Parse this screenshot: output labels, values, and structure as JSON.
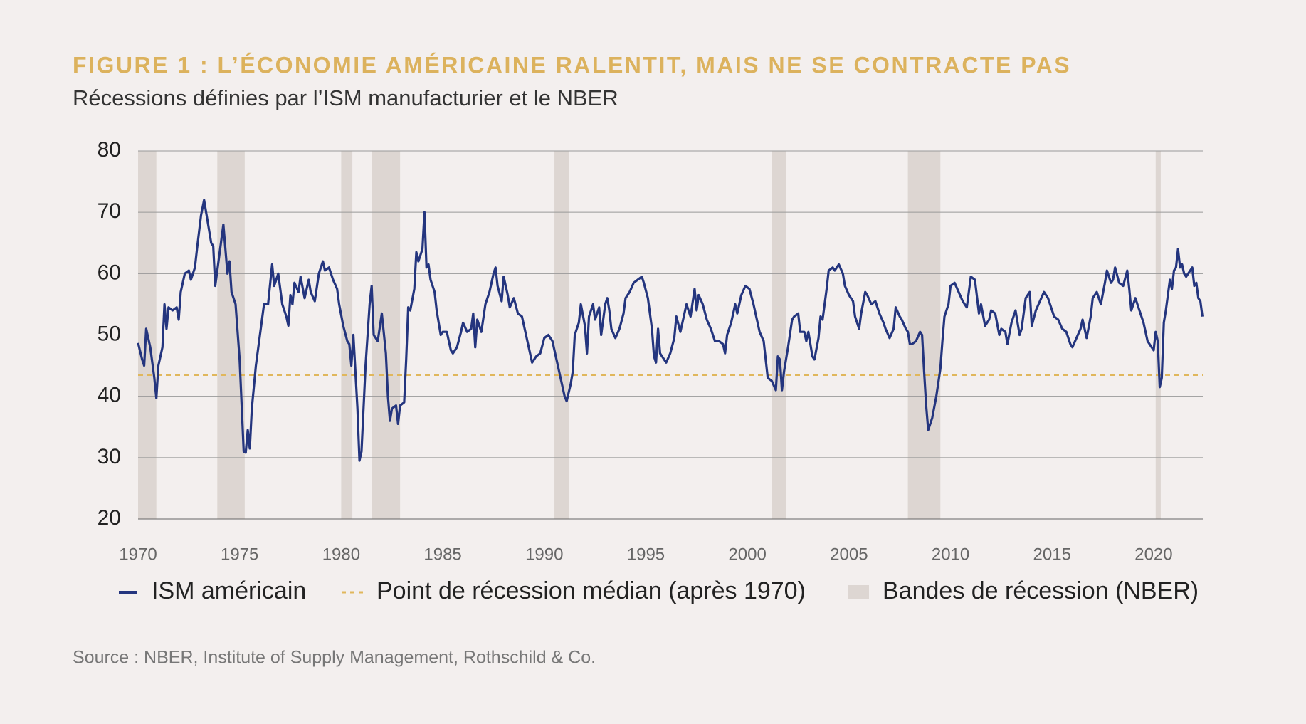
{
  "chart_data": {
    "type": "line",
    "title": "FIGURE 1 : L’ÉCONOMIE AMÉRICAINE RALENTIT, MAIS NE SE CONTRACTE PAS",
    "subtitle": "Récessions définies par l’ISM manufacturier et le NBER",
    "source": "Source : NBER, Institute of Supply Management, Rothschild & Co.",
    "xlim": [
      1970,
      2022.42
    ],
    "xticks": [
      1970,
      1975,
      1980,
      1985,
      1990,
      1995,
      2000,
      2005,
      2010,
      2015,
      2020
    ],
    "ylim": [
      20,
      80
    ],
    "yticks": [
      20,
      30,
      40,
      50,
      60,
      70,
      80
    ],
    "grid": true,
    "x": [
      1970.0,
      1970.2,
      1970.3,
      1970.4,
      1970.6,
      1970.8,
      1970.9,
      1971.0,
      1971.2,
      1971.3,
      1971.4,
      1971.5,
      1971.7,
      1971.9,
      1972.0,
      1972.1,
      1972.3,
      1972.5,
      1972.6,
      1972.8,
      1972.9,
      1973.1,
      1973.25,
      1973.4,
      1973.6,
      1973.7,
      1973.8,
      1974.0,
      1974.2,
      1974.4,
      1974.5,
      1974.6,
      1974.8,
      1975.0,
      1975.2,
      1975.3,
      1975.4,
      1975.5,
      1975.6,
      1975.8,
      1976.0,
      1976.2,
      1976.4,
      1976.6,
      1976.7,
      1976.9,
      1977.1,
      1977.3,
      1977.4,
      1977.5,
      1977.6,
      1977.7,
      1977.9,
      1978.0,
      1978.2,
      1978.4,
      1978.5,
      1978.7,
      1978.9,
      1979.1,
      1979.2,
      1979.4,
      1979.6,
      1979.8,
      1979.9,
      1980.1,
      1980.3,
      1980.4,
      1980.5,
      1980.6,
      1980.8,
      1980.9,
      1981.0,
      1981.2,
      1981.4,
      1981.5,
      1981.6,
      1981.8,
      1982.0,
      1982.2,
      1982.3,
      1982.4,
      1982.5,
      1982.7,
      1982.8,
      1982.9,
      1983.1,
      1983.2,
      1983.3,
      1983.4,
      1983.6,
      1983.7,
      1983.8,
      1984.0,
      1984.1,
      1984.2,
      1984.3,
      1984.4,
      1984.6,
      1984.7,
      1984.9,
      1985.0,
      1985.2,
      1985.4,
      1985.5,
      1985.7,
      1985.9,
      1986.0,
      1986.2,
      1986.4,
      1986.5,
      1986.6,
      1986.7,
      1986.9,
      1987.1,
      1987.3,
      1987.5,
      1987.6,
      1987.7,
      1987.9,
      1988.0,
      1988.2,
      1988.3,
      1988.5,
      1988.7,
      1988.9,
      1989.1,
      1989.3,
      1989.4,
      1989.6,
      1989.8,
      1990.0,
      1990.2,
      1990.4,
      1990.6,
      1990.8,
      1991.0,
      1991.1,
      1991.3,
      1991.4,
      1991.5,
      1991.7,
      1991.8,
      1992.0,
      1992.1,
      1992.2,
      1992.4,
      1992.5,
      1992.7,
      1992.8,
      1993.0,
      1993.1,
      1993.2,
      1993.3,
      1993.5,
      1993.7,
      1993.9,
      1994.0,
      1994.2,
      1994.4,
      1994.6,
      1994.8,
      1994.9,
      1995.1,
      1995.3,
      1995.4,
      1995.5,
      1995.6,
      1995.7,
      1995.9,
      1996.0,
      1996.2,
      1996.4,
      1996.5,
      1996.7,
      1996.9,
      1997.0,
      1997.2,
      1997.4,
      1997.5,
      1997.6,
      1997.8,
      1998.0,
      1998.2,
      1998.4,
      1998.6,
      1998.8,
      1998.9,
      1999.0,
      1999.2,
      1999.4,
      1999.5,
      1999.7,
      1999.9,
      2000.1,
      2000.3,
      2000.4,
      2000.6,
      2000.8,
      2000.9,
      2001.0,
      2001.2,
      2001.4,
      2001.5,
      2001.6,
      2001.7,
      2001.8,
      2002.0,
      2002.2,
      2002.3,
      2002.5,
      2002.6,
      2002.8,
      2002.9,
      2003.0,
      2003.2,
      2003.3,
      2003.5,
      2003.6,
      2003.7,
      2003.9,
      2004.0,
      2004.2,
      2004.3,
      2004.5,
      2004.7,
      2004.8,
      2005.0,
      2005.2,
      2005.3,
      2005.5,
      2005.6,
      2005.8,
      2005.9,
      2006.1,
      2006.3,
      2006.5,
      2006.7,
      2006.8,
      2007.0,
      2007.2,
      2007.3,
      2007.5,
      2007.6,
      2007.8,
      2007.9,
      2008.0,
      2008.1,
      2008.3,
      2008.5,
      2008.6,
      2008.7,
      2008.8,
      2008.9,
      2009.0,
      2009.1,
      2009.3,
      2009.5,
      2009.6,
      2009.7,
      2009.9,
      2010.0,
      2010.2,
      2010.4,
      2010.6,
      2010.8,
      2010.9,
      2011.0,
      2011.2,
      2011.4,
      2011.5,
      2011.7,
      2011.9,
      2012.0,
      2012.2,
      2012.4,
      2012.5,
      2012.7,
      2012.8,
      2013.0,
      2013.2,
      2013.4,
      2013.5,
      2013.7,
      2013.9,
      2014.0,
      2014.2,
      2014.4,
      2014.6,
      2014.8,
      2014.9,
      2015.1,
      2015.3,
      2015.5,
      2015.7,
      2015.9,
      2016.0,
      2016.2,
      2016.4,
      2016.5,
      2016.7,
      2016.9,
      2017.0,
      2017.2,
      2017.4,
      2017.6,
      2017.7,
      2017.9,
      2018.0,
      2018.1,
      2018.3,
      2018.5,
      2018.7,
      2018.8,
      2018.9,
      2019.1,
      2019.3,
      2019.5,
      2019.7,
      2019.9,
      2020.0,
      2020.1,
      2020.2,
      2020.3,
      2020.4,
      2020.5,
      2020.6,
      2020.8,
      2020.9,
      2021.0,
      2021.1,
      2021.2,
      2021.3,
      2021.4,
      2021.5,
      2021.6,
      2021.8,
      2021.9,
      2022.0,
      2022.1,
      2022.2,
      2022.3,
      2022.4
    ],
    "series": [
      {
        "name": "ISM américain",
        "color": "#24357e",
        "values": [
          48.7,
          46,
          45,
          51,
          48,
          43,
          39.7,
          45,
          48,
          55,
          51,
          54.5,
          54,
          54.5,
          52.5,
          57,
          60,
          60.5,
          59,
          61,
          64,
          69.5,
          72,
          69,
          65,
          64.5,
          58,
          63,
          68,
          60,
          62,
          57,
          55,
          46,
          31,
          30.8,
          34.5,
          31.5,
          38,
          45,
          50,
          55,
          55,
          61.5,
          58,
          60,
          55,
          53,
          51.5,
          56.5,
          55,
          58.5,
          57,
          59.5,
          56,
          59,
          57,
          55.5,
          60,
          62,
          60.5,
          61,
          59,
          57.5,
          55,
          51.5,
          49,
          48.5,
          45,
          50,
          38,
          29.5,
          31,
          45,
          55,
          58,
          50,
          49,
          53.5,
          47,
          40,
          36,
          38,
          38.5,
          35.5,
          38.5,
          39,
          46,
          54.5,
          54,
          57.5,
          63.5,
          62,
          64,
          70,
          61,
          61.5,
          59,
          57,
          54,
          50,
          50.5,
          50.5,
          47.5,
          47,
          48,
          50.5,
          52,
          50.5,
          51,
          53.5,
          48,
          52.5,
          50.5,
          55,
          57,
          60,
          61,
          58,
          55.5,
          59.5,
          56.5,
          54.5,
          56,
          53.5,
          53,
          50,
          47,
          45.5,
          46.5,
          47,
          49.5,
          50,
          49,
          46,
          43,
          40,
          39.2,
          42,
          44,
          50,
          52,
          55,
          51.5,
          47,
          53,
          55,
          52.5,
          54.5,
          50,
          55,
          56,
          54,
          51,
          49.5,
          51,
          53.5,
          56,
          57,
          58.5,
          59,
          59.5,
          58.5,
          56,
          51,
          46.5,
          45.5,
          51,
          47,
          46,
          45.5,
          47,
          49.5,
          53,
          50.5,
          53.5,
          55,
          53,
          57.5,
          54,
          56.5,
          55,
          52.5,
          51,
          49,
          49,
          48.5,
          47,
          50,
          52,
          55,
          53.5,
          56.5,
          58,
          57.5,
          55,
          53.5,
          50.5,
          49,
          46,
          43,
          42.5,
          41,
          46.5,
          46,
          41,
          44,
          48,
          52.5,
          53,
          53.5,
          50.5,
          50.5,
          49,
          50.5,
          46.5,
          46,
          49.5,
          53,
          52.5,
          57.5,
          60.5,
          61,
          60.5,
          61.5,
          60,
          58,
          56.5,
          55.5,
          53,
          51,
          53.5,
          57,
          56.5,
          55,
          55.5,
          53.5,
          52,
          51,
          49.5,
          51,
          54.5,
          53,
          52.5,
          51,
          50.5,
          48.5,
          48.5,
          49,
          50.5,
          50,
          44,
          38.5,
          34.5,
          35.5,
          36.5,
          40,
          44.5,
          49,
          53,
          55,
          58,
          58.5,
          57,
          55.5,
          54.5,
          57,
          59.5,
          59,
          53.5,
          55,
          51.5,
          52.5,
          54,
          53.5,
          50,
          51,
          50.5,
          48.5,
          52,
          54,
          50,
          51,
          56,
          57,
          51.5,
          54,
          55.5,
          57,
          56,
          55,
          53,
          52.5,
          51,
          50.5,
          48.5,
          48,
          49.5,
          51,
          52.5,
          49.5,
          53,
          56,
          57,
          55,
          58.5,
          60.5,
          58.5,
          59,
          61,
          58.5,
          58,
          60.5,
          57.5,
          54,
          56,
          54,
          52,
          49,
          48,
          47.5,
          50.5,
          49,
          41.5,
          43,
          52,
          54,
          59,
          57.5,
          60.5,
          61,
          64,
          61,
          61.5,
          60,
          59.5,
          60.5,
          61,
          58,
          58.5,
          56,
          55.5,
          53
        ]
      }
    ],
    "reference": {
      "name": "Point de récession médian (après 1970)",
      "value": 43.5,
      "color": "#e0b75c"
    },
    "bands": {
      "name": "Bandes de récession (NBER)",
      "color": "#ddd6d2",
      "ranges": [
        {
          "start": 1970.0,
          "end": 1970.9
        },
        {
          "start": 1973.9,
          "end": 1975.25
        },
        {
          "start": 1980.0,
          "end": 1980.55
        },
        {
          "start": 1981.5,
          "end": 1982.9
        },
        {
          "start": 1990.5,
          "end": 1991.2
        },
        {
          "start": 2001.2,
          "end": 2001.9
        },
        {
          "start": 2007.9,
          "end": 2009.5
        },
        {
          "start": 2020.1,
          "end": 2020.35
        }
      ]
    }
  }
}
